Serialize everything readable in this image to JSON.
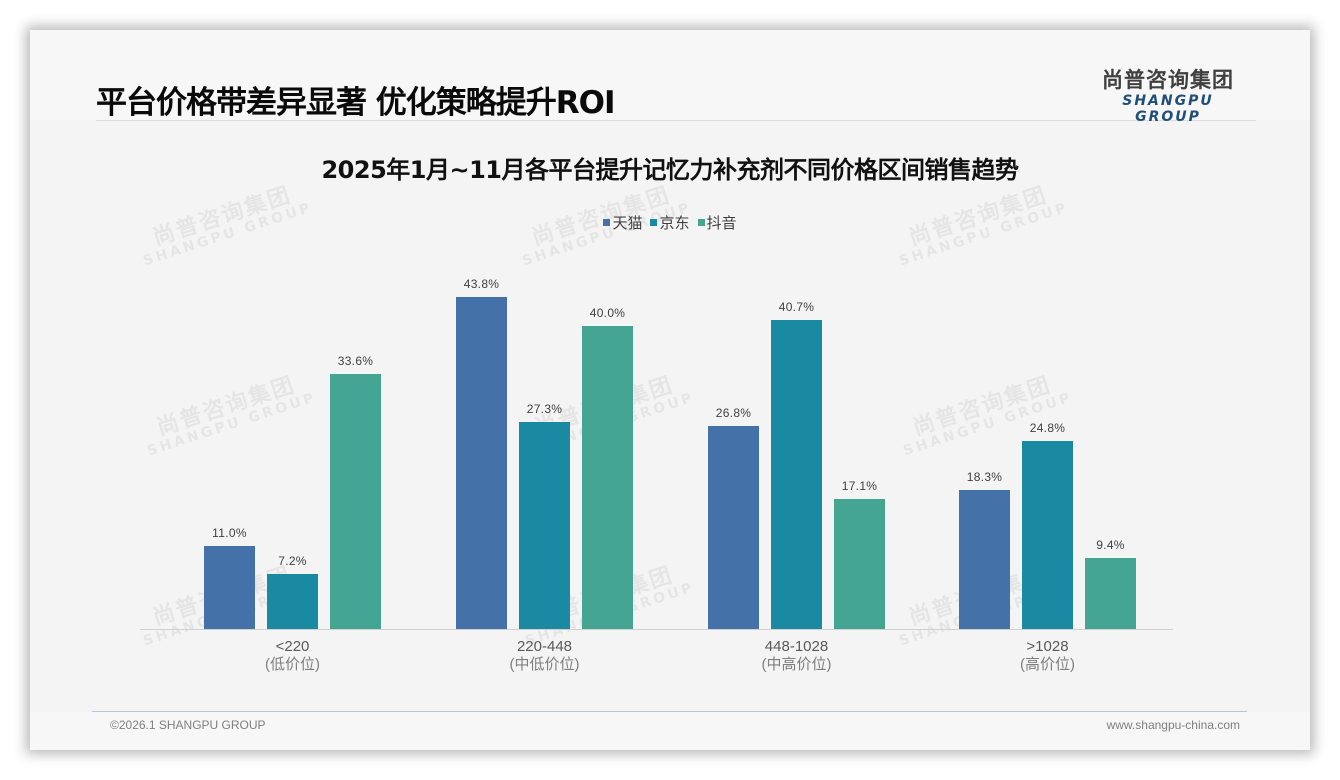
{
  "header": {
    "title": "平台价格带差异显著 优化策略提升ROI",
    "logo_cn": "尚普咨询集团",
    "logo_en": "SHANGPU GROUP"
  },
  "watermark": {
    "cn": "尚普咨询集团",
    "en": "SHANGPU GROUP"
  },
  "footer": {
    "copyright": "©2026.1 SHANGPU GROUP",
    "website": "www.shangpu-china.com"
  },
  "colors": {
    "tmall": "#4472a8",
    "jd": "#1a8aa3",
    "douyin": "#43a592"
  },
  "chart_data": {
    "type": "bar",
    "title": "2025年1月~11月各平台提升记忆力补充剂不同价格区间销售趋势",
    "categories": [
      "<220",
      "220-448",
      "448-1028",
      ">1028"
    ],
    "category_sublabels": [
      "(低价位)",
      "(中低价位)",
      "(中高价位)",
      "(高价位)"
    ],
    "series": [
      {
        "name": "天猫",
        "color": "#4472a8",
        "values": [
          11.0,
          43.8,
          26.8,
          18.3
        ],
        "labels": [
          "11.0%",
          "43.8%",
          "26.8%",
          "18.3%"
        ]
      },
      {
        "name": "京东",
        "color": "#1a8aa3",
        "values": [
          7.2,
          27.3,
          40.7,
          24.8
        ],
        "labels": [
          "7.2%",
          "27.3%",
          "40.7%",
          "24.8%"
        ]
      },
      {
        "name": "抖音",
        "color": "#43a592",
        "values": [
          33.6,
          40.0,
          17.1,
          9.4
        ],
        "labels": [
          "33.6%",
          "40.0%",
          "17.1%",
          "9.4%"
        ]
      }
    ],
    "xlabel": "",
    "ylabel": "",
    "unit": "%",
    "ylim": [
      0,
      50
    ],
    "grid": false,
    "legend_position": "top",
    "data_labels": true
  }
}
